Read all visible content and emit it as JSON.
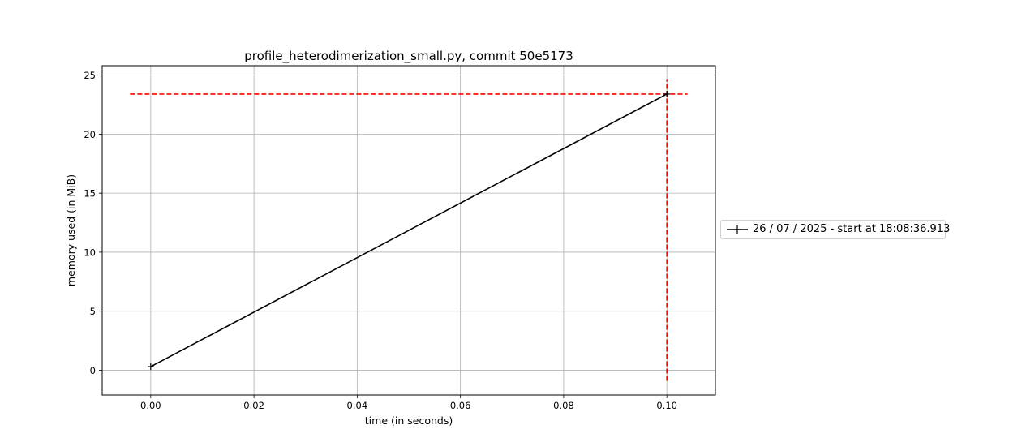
{
  "chart_data": {
    "type": "line",
    "title": "profile_heterodimerization_small.py, commit 50e5173",
    "xlabel": "time (in seconds)",
    "ylabel": "memory used (in MiB)",
    "xlim": [
      -0.0094,
      0.1094
    ],
    "ylim": [
      -2.1,
      25.8
    ],
    "xticks": [
      0.0,
      0.02,
      0.04,
      0.06,
      0.08,
      0.1
    ],
    "xtick_labels": [
      "0.00",
      "0.02",
      "0.04",
      "0.06",
      "0.08",
      "0.10"
    ],
    "yticks": [
      0,
      5,
      10,
      15,
      20,
      25
    ],
    "ytick_labels": [
      "0",
      "5",
      "10",
      "15",
      "20",
      "25"
    ],
    "grid": true,
    "legend_position": "center-right outside",
    "series": [
      {
        "name": "26 / 07 / 2025 - start at 18:08:36.913",
        "color": "#000000",
        "marker": "+",
        "x": [
          0.0,
          0.1
        ],
        "y": [
          0.3,
          23.4
        ]
      }
    ],
    "reference_lines": [
      {
        "orientation": "horizontal",
        "y": 23.4,
        "x_range": [
          -0.004,
          0.104
        ],
        "color": "#ff0000",
        "style": "dashed"
      },
      {
        "orientation": "vertical",
        "x": 0.1,
        "y_range": [
          -0.9,
          24.6
        ],
        "color": "#ff0000",
        "style": "dashed"
      }
    ]
  }
}
